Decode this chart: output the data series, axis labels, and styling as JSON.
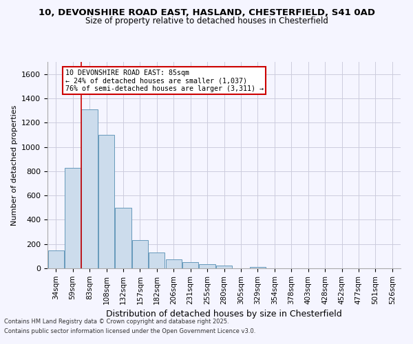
{
  "title_line1": "10, DEVONSHIRE ROAD EAST, HASLAND, CHESTERFIELD, S41 0AD",
  "title_line2": "Size of property relative to detached houses in Chesterfield",
  "xlabel": "Distribution of detached houses by size in Chesterfield",
  "ylabel": "Number of detached properties",
  "footnote1": "Contains HM Land Registry data © Crown copyright and database right 2025.",
  "footnote2": "Contains public sector information licensed under the Open Government Licence v3.0.",
  "bar_color": "#ccdcec",
  "bar_edge_color": "#6699bb",
  "marker_color": "#cc0000",
  "annotation_box_color": "#cc0000",
  "categories": [
    "34sqm",
    "59sqm",
    "83sqm",
    "108sqm",
    "132sqm",
    "157sqm",
    "182sqm",
    "206sqm",
    "231sqm",
    "255sqm",
    "280sqm",
    "305sqm",
    "329sqm",
    "354sqm",
    "378sqm",
    "403sqm",
    "428sqm",
    "452sqm",
    "477sqm",
    "501sqm",
    "526sqm"
  ],
  "values": [
    150,
    830,
    1310,
    1100,
    500,
    235,
    130,
    75,
    50,
    35,
    20,
    0,
    10,
    0,
    0,
    0,
    0,
    0,
    0,
    0,
    0
  ],
  "property_bin_index": 2,
  "annotation_text": "10 DEVONSHIRE ROAD EAST: 85sqm\n← 24% of detached houses are smaller (1,037)\n76% of semi-detached houses are larger (3,311) →",
  "ylim": [
    0,
    1700
  ],
  "yticks": [
    0,
    200,
    400,
    600,
    800,
    1000,
    1200,
    1400,
    1600
  ],
  "background_color": "#f5f5ff",
  "grid_color": "#ccccdd",
  "fig_width": 6.0,
  "fig_height": 5.0
}
